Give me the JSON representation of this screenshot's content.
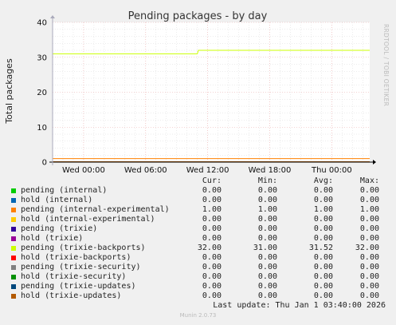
{
  "colors": {
    "background": "#f0f0f0",
    "plot_bg": "#ffffff",
    "grid_major": "#e8a8a8",
    "grid_minor": "#d8d8d8"
  },
  "chart_data": {
    "type": "line",
    "title": "Pending packages - by day",
    "ylabel": "Total packages",
    "ylim": [
      0,
      40
    ],
    "yticks": [
      0,
      10,
      20,
      30,
      40
    ],
    "xlim": [
      "Tue 21:00",
      "Thu 03:40"
    ],
    "xticks": [
      {
        "label": "Wed 00:00",
        "hours": 3
      },
      {
        "label": "Wed 06:00",
        "hours": 9
      },
      {
        "label": "Wed 12:00",
        "hours": 15
      },
      {
        "label": "Wed 18:00",
        "hours": 21
      },
      {
        "label": "Thu 00:00",
        "hours": 27
      }
    ],
    "series": [
      {
        "name": "pending (internal)",
        "color": "#00cc00",
        "points": [
          [
            0,
            0
          ],
          [
            30.67,
            0
          ]
        ]
      },
      {
        "name": "hold (internal)",
        "color": "#0066b3",
        "points": [
          [
            0,
            0
          ],
          [
            30.67,
            0
          ]
        ]
      },
      {
        "name": "pending (internal-experimental)",
        "color": "#ff8000",
        "points": [
          [
            0,
            1
          ],
          [
            30.67,
            1
          ]
        ]
      },
      {
        "name": "hold (internal-experimental)",
        "color": "#ffcc00",
        "points": [
          [
            0,
            0
          ],
          [
            30.67,
            0
          ]
        ]
      },
      {
        "name": "pending (trixie)",
        "color": "#330099",
        "points": [
          [
            0,
            0
          ],
          [
            30.67,
            0
          ]
        ]
      },
      {
        "name": "hold (trixie)",
        "color": "#990099",
        "points": [
          [
            0,
            0
          ],
          [
            30.67,
            0
          ]
        ]
      },
      {
        "name": "pending (trixie-backports)",
        "color": "#ccff00",
        "points": [
          [
            0,
            31
          ],
          [
            14,
            31
          ],
          [
            14.1,
            32
          ],
          [
            30.67,
            32
          ]
        ]
      },
      {
        "name": "hold (trixie-backports)",
        "color": "#ff0000",
        "points": [
          [
            0,
            0
          ],
          [
            30.67,
            0
          ]
        ]
      },
      {
        "name": "pending (trixie-security)",
        "color": "#808080",
        "points": [
          [
            0,
            0
          ],
          [
            30.67,
            0
          ]
        ]
      },
      {
        "name": "hold (trixie-security)",
        "color": "#008f00",
        "points": [
          [
            0,
            0
          ],
          [
            30.67,
            0
          ]
        ]
      },
      {
        "name": "pending (trixie-updates)",
        "color": "#00487d",
        "points": [
          [
            0,
            0
          ],
          [
            30.67,
            0
          ]
        ]
      },
      {
        "name": "hold (trixie-updates)",
        "color": "#b35a00",
        "points": [
          [
            0,
            0
          ],
          [
            30.67,
            0
          ]
        ]
      }
    ],
    "legend_headers": [
      "Cur:",
      "Min:",
      "Avg:",
      "Max:"
    ],
    "legend_rows": [
      {
        "label": "pending (internal)",
        "cur": "0.00",
        "min": "0.00",
        "avg": "0.00",
        "max": "0.00"
      },
      {
        "label": "hold (internal)",
        "cur": "0.00",
        "min": "0.00",
        "avg": "0.00",
        "max": "0.00"
      },
      {
        "label": "pending (internal-experimental)",
        "cur": "1.00",
        "min": "1.00",
        "avg": "1.00",
        "max": "1.00"
      },
      {
        "label": "hold (internal-experimental)",
        "cur": "0.00",
        "min": "0.00",
        "avg": "0.00",
        "max": "0.00"
      },
      {
        "label": "pending (trixie)",
        "cur": "0.00",
        "min": "0.00",
        "avg": "0.00",
        "max": "0.00"
      },
      {
        "label": "hold (trixie)",
        "cur": "0.00",
        "min": "0.00",
        "avg": "0.00",
        "max": "0.00"
      },
      {
        "label": "pending (trixie-backports)",
        "cur": "32.00",
        "min": "31.00",
        "avg": "31.52",
        "max": "32.00"
      },
      {
        "label": "hold (trixie-backports)",
        "cur": "0.00",
        "min": "0.00",
        "avg": "0.00",
        "max": "0.00"
      },
      {
        "label": "pending (trixie-security)",
        "cur": "0.00",
        "min": "0.00",
        "avg": "0.00",
        "max": "0.00"
      },
      {
        "label": "hold (trixie-security)",
        "cur": "0.00",
        "min": "0.00",
        "avg": "0.00",
        "max": "0.00"
      },
      {
        "label": "pending (trixie-updates)",
        "cur": "0.00",
        "min": "0.00",
        "avg": "0.00",
        "max": "0.00"
      },
      {
        "label": "hold (trixie-updates)",
        "cur": "0.00",
        "min": "0.00",
        "avg": "0.00",
        "max": "0.00"
      }
    ],
    "last_update": "Last update: Thu Jan  1 03:40:00 2026",
    "side_label": "RRDTOOL / TOBI OETIKER",
    "footer": "Munin 2.0.73",
    "grid": true
  }
}
